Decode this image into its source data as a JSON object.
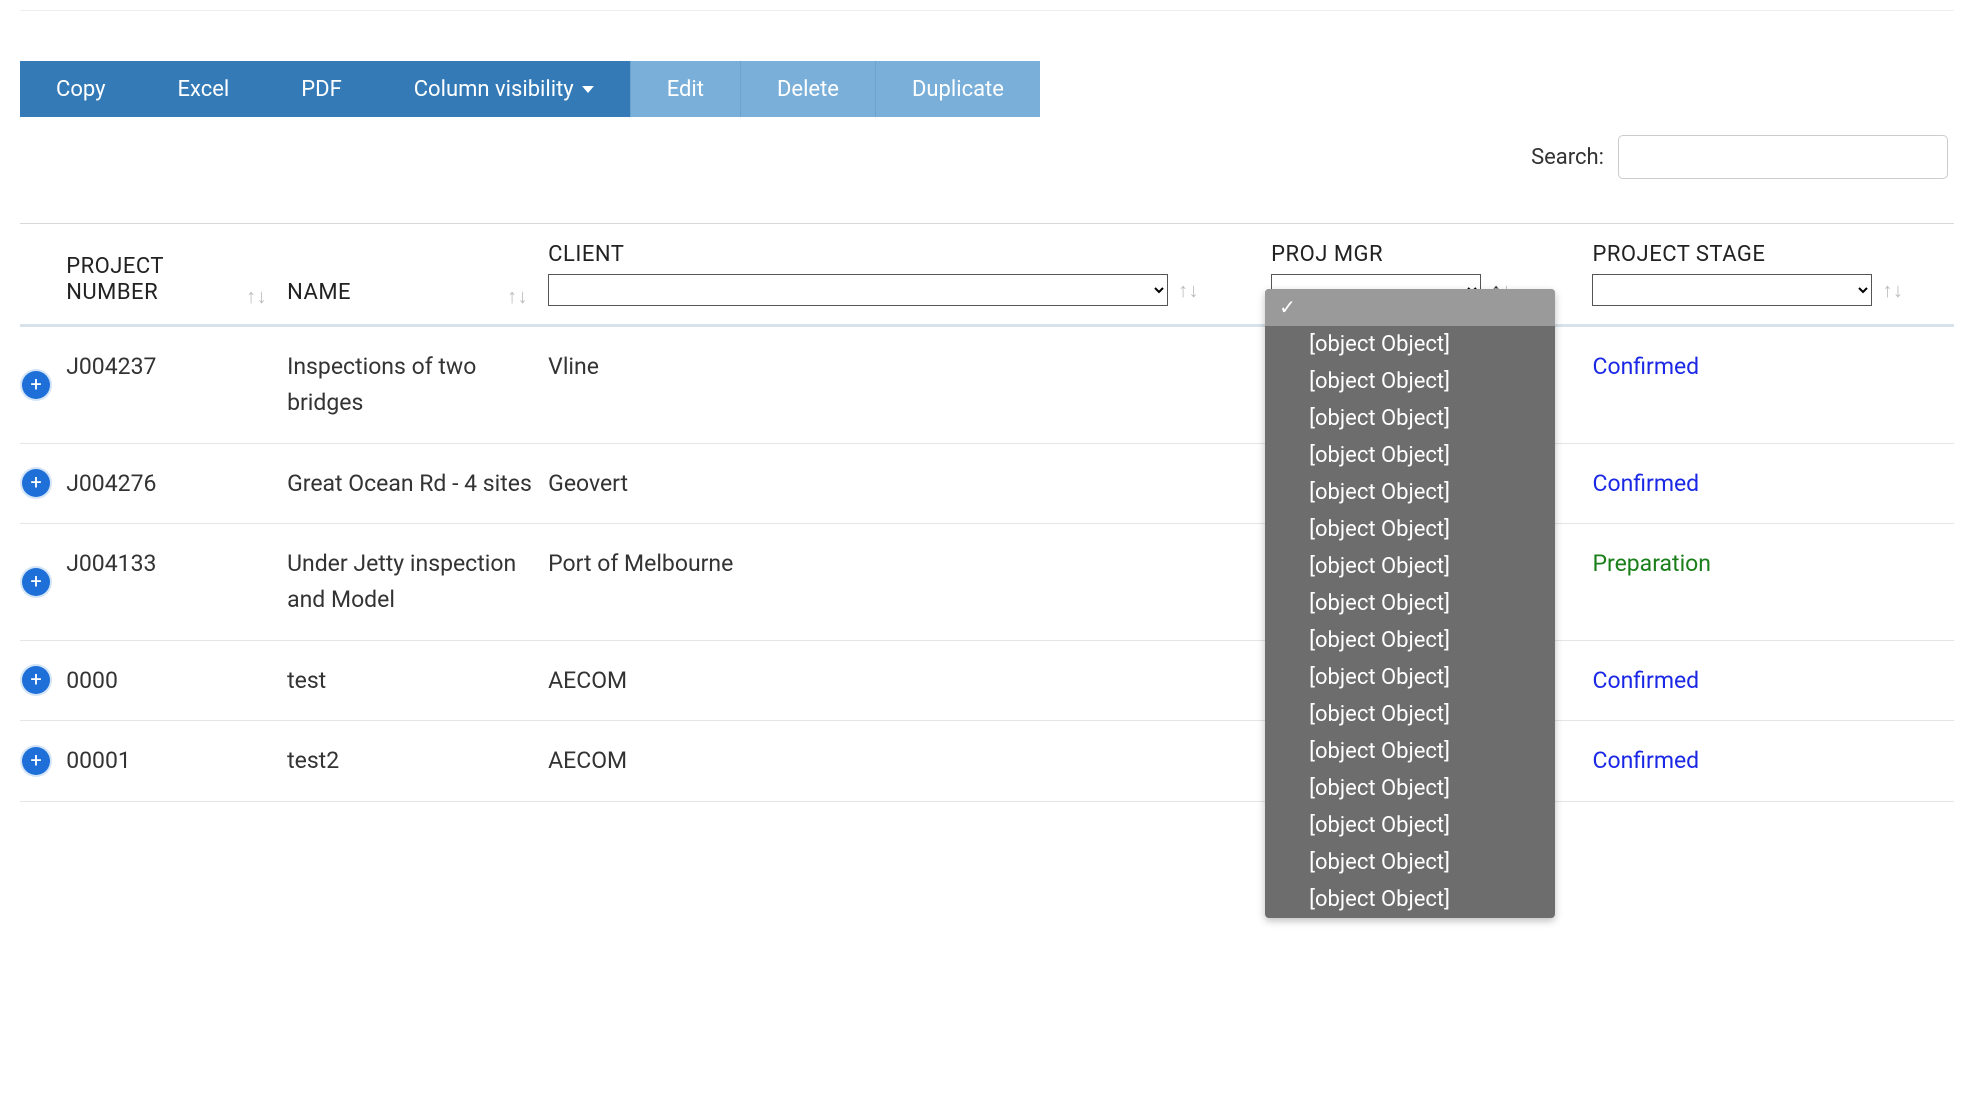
{
  "toolbar": {
    "copy": "Copy",
    "excel": "Excel",
    "pdf": "PDF",
    "colvis": "Column visibility",
    "edit": "Edit",
    "delete": "Delete",
    "duplicate": "Duplicate"
  },
  "search": {
    "label": "Search:",
    "value": ""
  },
  "columns": {
    "expand": "",
    "project_number": "PROJECT NUMBER",
    "name": "NAME",
    "client": "CLIENT",
    "proj_mgr": "PROJ MGR",
    "project_stage": "PROJECT STAGE"
  },
  "filters": {
    "client_selected": "",
    "proj_mgr_selected": "",
    "project_stage_selected": ""
  },
  "proj_mgr_dropdown": {
    "open": true,
    "selected_index": 0,
    "options": [
      "",
      "[object Object]",
      "[object Object]",
      "[object Object]",
      "[object Object]",
      "[object Object]",
      "[object Object]",
      "[object Object]",
      "[object Object]",
      "[object Object]",
      "[object Object]",
      "[object Object]",
      "[object Object]",
      "[object Object]",
      "[object Object]",
      "[object Object]",
      "[object Object]"
    ]
  },
  "rows": [
    {
      "num": "J004237",
      "name": "Inspections of two bridges",
      "client": "Vline",
      "mgr": "",
      "stage": "Confirmed",
      "stage_class": "stage-confirmed"
    },
    {
      "num": "J004276",
      "name": "Great Ocean Rd - 4 sites",
      "client": "Geovert",
      "mgr": "",
      "stage": "Confirmed",
      "stage_class": "stage-confirmed"
    },
    {
      "num": "J004133",
      "name": "Under Jetty inspection and Model",
      "client": "Port of Melbourne",
      "mgr": "",
      "stage": "Preparation",
      "stage_class": "stage-preparation"
    },
    {
      "num": "0000",
      "name": "test",
      "client": "AECOM",
      "mgr": "",
      "stage": "Confirmed",
      "stage_class": "stage-confirmed"
    },
    {
      "num": "00001",
      "name": "test2",
      "client": "AECOM",
      "mgr": "",
      "stage": "Confirmed",
      "stage_class": "stage-confirmed"
    }
  ],
  "colors": {
    "btn_primary": "#337ab7",
    "btn_light": "#79afd9",
    "link_blue": "#1a28e6",
    "green": "#1a7f1a",
    "dropdown_bg": "#6d6d6d",
    "dropdown_sel": "#9a9a9a"
  }
}
